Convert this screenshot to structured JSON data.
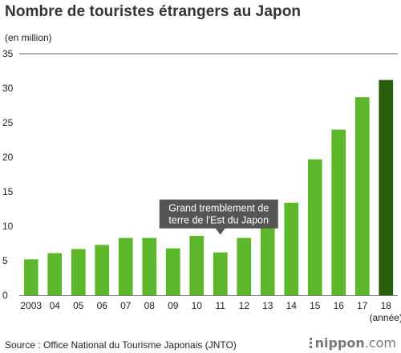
{
  "chart_data": {
    "type": "bar",
    "title": "Nombre de touristes étrangers au Japon",
    "ylabel": "(en million)",
    "xlabel": "(année)",
    "ylim": [
      0,
      35
    ],
    "yticks": [
      0,
      5,
      10,
      15,
      20,
      25,
      30,
      35
    ],
    "grid": false,
    "categories": [
      "2003",
      "04",
      "05",
      "06",
      "07",
      "08",
      "09",
      "10",
      "11",
      "12",
      "13",
      "14",
      "15",
      "16",
      "17",
      "18"
    ],
    "values": [
      5.2,
      6.1,
      6.7,
      7.3,
      8.3,
      8.3,
      6.8,
      8.6,
      6.2,
      8.3,
      10.3,
      13.4,
      19.7,
      24.0,
      28.7,
      31.2
    ],
    "highlight_index": 15,
    "colors": {
      "bar": "#5cb82a",
      "highlight": "#2a5e0c",
      "callout": "#555555"
    },
    "annotation": {
      "category": "11",
      "lines": [
        "Grand tremblement de",
        "terre de l'Est du Japon"
      ]
    }
  },
  "source": "Source : Office National du Tourisme Japonais (JNTO)",
  "brand": {
    "name": "nippon",
    "suffix": ".com",
    "icon": "dots-icon"
  }
}
